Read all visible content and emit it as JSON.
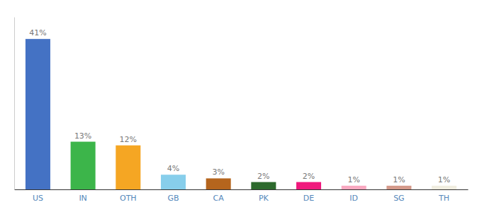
{
  "chart_data": {
    "type": "bar",
    "categories": [
      "US",
      "IN",
      "OTH",
      "GB",
      "CA",
      "PK",
      "DE",
      "ID",
      "SG",
      "TH"
    ],
    "values": [
      41,
      13,
      12,
      4,
      3,
      2,
      2,
      1,
      1,
      1
    ],
    "value_labels": [
      "41%",
      "13%",
      "12%",
      "4%",
      "3%",
      "2%",
      "2%",
      "1%",
      "1%",
      "1%"
    ],
    "colors": [
      "#4472c4",
      "#3cb54a",
      "#f5a623",
      "#87ceeb",
      "#b5651d",
      "#2d6a2d",
      "#f0197d",
      "#f9a8c0",
      "#d4998a",
      "#f0ede0"
    ],
    "data_labels": true,
    "ylim": [
      0,
      47
    ],
    "tick_labels": "x"
  }
}
